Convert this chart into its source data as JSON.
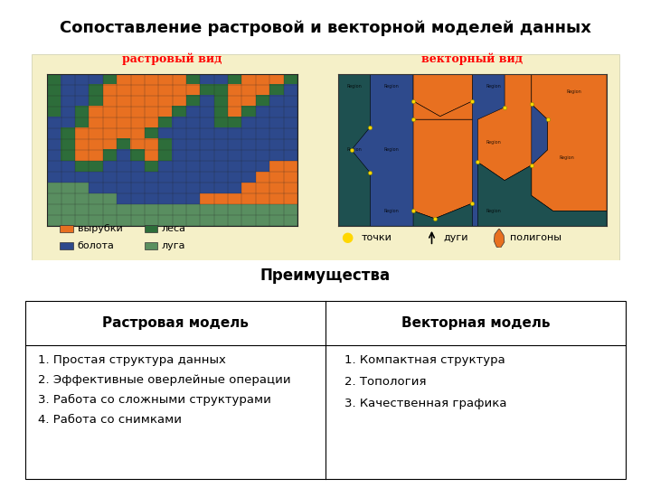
{
  "title": "Сопоставление растровой и векторной моделей данных",
  "title_fontsize": 13,
  "raster_label": "растровый вид",
  "vector_label": "векторный вид",
  "legend_items": [
    {
      "label": "вырубки",
      "color": "#E87020",
      "row": 0,
      "col": 0
    },
    {
      "label": "леса",
      "color": "#2D6E3A",
      "row": 0,
      "col": 1
    },
    {
      "label": "болота",
      "color": "#2E4A8C",
      "row": 1,
      "col": 0
    },
    {
      "label": "луга",
      "color": "#5A9060",
      "row": 1,
      "col": 1
    }
  ],
  "advantages_title": "Преимущества",
  "col1_header": "Растровая модель",
  "col2_header": "Векторная модель",
  "col1_items": [
    "1. Простая структура данных",
    "2. Эффективные оверлейные операции",
    "3. Работа со сложными структурами",
    "4. Работа со снимками"
  ],
  "col2_items": [
    "1. Компактная структура",
    "2. Топология",
    "3. Качественная графика"
  ],
  "bg_color": "#F5F0C8",
  "C_orange": [
    0.91,
    0.44,
    0.13
  ],
  "C_dblue": [
    0.18,
    0.29,
    0.55
  ],
  "C_dgreen": [
    0.18,
    0.43,
    0.23
  ],
  "C_mgreen": [
    0.35,
    0.56,
    0.38
  ],
  "grid_data": [
    [
      2,
      2,
      0,
      0,
      2,
      1,
      1,
      1,
      0,
      0,
      2,
      2,
      2,
      2,
      2,
      2,
      2,
      2
    ],
    [
      2,
      2,
      0,
      0,
      2,
      1,
      1,
      1,
      0,
      0,
      2,
      2,
      1,
      1,
      1,
      1,
      2,
      2
    ],
    [
      2,
      2,
      0,
      0,
      2,
      1,
      1,
      1,
      0,
      2,
      1,
      1,
      1,
      1,
      1,
      1,
      1,
      2
    ],
    [
      2,
      2,
      0,
      0,
      2,
      1,
      1,
      1,
      2,
      1,
      1,
      1,
      1,
      1,
      1,
      1,
      1,
      2
    ],
    [
      2,
      2,
      0,
      2,
      1,
      1,
      1,
      1,
      1,
      1,
      1,
      1,
      2,
      0,
      0,
      0,
      2,
      2
    ],
    [
      2,
      2,
      2,
      1,
      1,
      1,
      1,
      1,
      1,
      1,
      1,
      2,
      2,
      0,
      0,
      0,
      0,
      2
    ],
    [
      0,
      2,
      1,
      1,
      1,
      1,
      1,
      1,
      1,
      1,
      2,
      2,
      0,
      0,
      0,
      0,
      0,
      2
    ],
    [
      0,
      2,
      1,
      1,
      1,
      1,
      1,
      1,
      2,
      2,
      0,
      0,
      0,
      0,
      0,
      0,
      0,
      2
    ],
    [
      0,
      2,
      1,
      1,
      1,
      1,
      1,
      2,
      0,
      0,
      0,
      0,
      0,
      0,
      0,
      0,
      2,
      2
    ],
    [
      0,
      2,
      1,
      1,
      1,
      1,
      2,
      0,
      0,
      0,
      0,
      0,
      0,
      0,
      0,
      2,
      2,
      2
    ],
    [
      0,
      2,
      1,
      1,
      1,
      2,
      0,
      0,
      0,
      0,
      0,
      0,
      2,
      2,
      2,
      2,
      2,
      2
    ],
    [
      3,
      2,
      1,
      1,
      2,
      0,
      0,
      0,
      0,
      0,
      2,
      2,
      2,
      2,
      2,
      2,
      2,
      2
    ],
    [
      3,
      3,
      2,
      2,
      0,
      0,
      0,
      0,
      2,
      2,
      2,
      2,
      2,
      2,
      2,
      2,
      2,
      2
    ],
    [
      3,
      3,
      3,
      3,
      3,
      3,
      3,
      3,
      3,
      3,
      3,
      3,
      3,
      3,
      3,
      3,
      3,
      3
    ]
  ]
}
